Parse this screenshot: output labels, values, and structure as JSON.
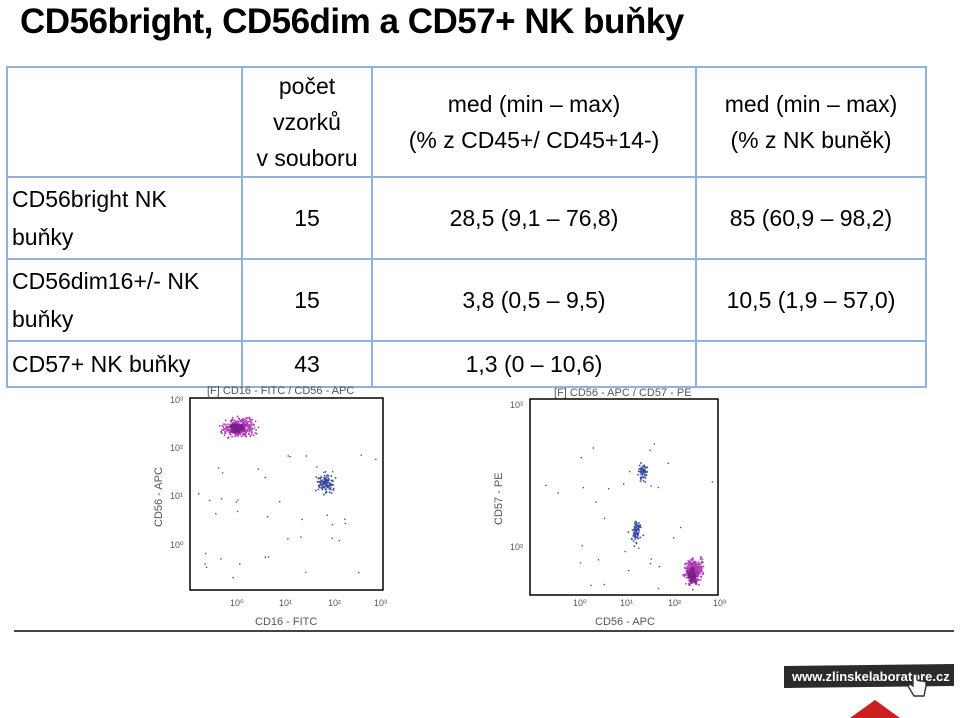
{
  "title": "CD56bright, CD56dim a CD57+ NK buňky",
  "table": {
    "headers": [
      "",
      [
        "počet vzorků",
        "v souboru"
      ],
      [
        "med (min – max)",
        "(% z CD45+/ CD45+14-)"
      ],
      [
        "med (min – max)",
        "(% z NK buněk)"
      ]
    ],
    "rows": [
      {
        "label": [
          "CD56bright NK",
          "buňky"
        ],
        "count": "15",
        "pct_cd45": "28,5 (9,1 – 76,8)",
        "pct_nk": "85 (60,9 – 98,2)"
      },
      {
        "label": [
          "CD56dim16+/- NK",
          "buňky"
        ],
        "count": "15",
        "pct_cd45": "3,8 (0,5 – 9,5)",
        "pct_nk": "10,5 (1,9 – 57,0)"
      },
      {
        "label": [
          "CD57+ NK buňky"
        ],
        "count": "43",
        "pct_cd45": "1,3 (0 – 10,6)",
        "pct_nk": ""
      }
    ]
  },
  "plots": [
    {
      "title": "[F] CD16 - FITC / CD56 - APC",
      "xlabel": "CD16 - FITC",
      "ylabel": "CD56 - APC",
      "xticks": [
        "10⁰",
        "10¹",
        "10²",
        "10³"
      ],
      "yticks": [
        "10⁰",
        "10¹",
        "10²",
        "10³"
      ]
    },
    {
      "title": "[F] CD56 - APC / CD57 - PE",
      "xlabel": "CD56 - APC",
      "ylabel": "CD57 - PE",
      "xticks": [
        "10⁰",
        "10¹",
        "10²",
        "10³"
      ],
      "yticks": [
        "10²",
        "10³"
      ]
    }
  ],
  "logo": {
    "text": "www.zlinskelaboratore.cz",
    "colors": {
      "bg": "#2b2b2b",
      "accent": "#cc1f1f"
    }
  }
}
